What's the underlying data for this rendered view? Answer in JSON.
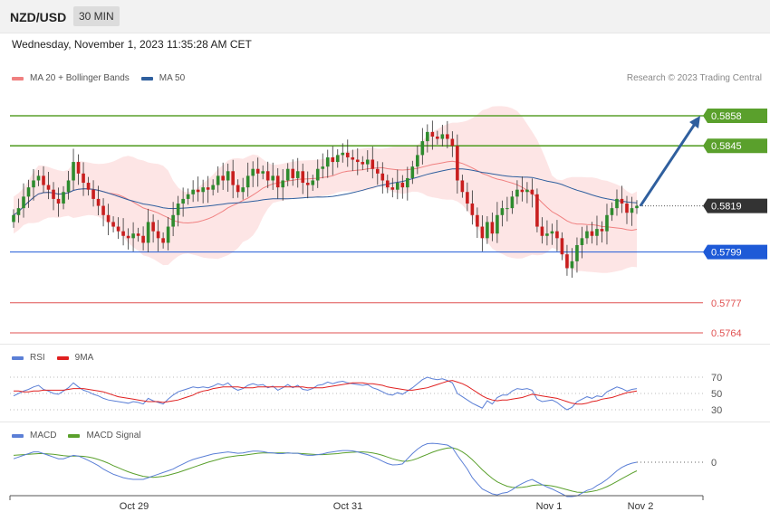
{
  "header": {
    "symbol": "NZD/USD",
    "timeframe": "30 MIN"
  },
  "datetime": "Wednesday, November 1, 2023 11:35:28 AM CET",
  "credit": "Research © 2023 Trading Central",
  "legends": {
    "price": [
      {
        "label": "MA 20 + Bollinger Bands",
        "color": "#f08080"
      },
      {
        "label": "MA 50",
        "color": "#2f5f9e"
      }
    ],
    "rsi": [
      {
        "label": "RSI",
        "color": "#5b7fd6"
      },
      {
        "label": "9MA",
        "color": "#e02020"
      }
    ],
    "macd": [
      {
        "label": "MACD",
        "color": "#5b7fd6"
      },
      {
        "label": "MACD Signal",
        "color": "#5aa02c"
      }
    ]
  },
  "colors": {
    "up": "#2e8b2e",
    "down": "#c81e1e",
    "bollinger_fill": "#fde0e0",
    "resistance": "#5aa02c",
    "pivot": "#1e5ad7",
    "support": "#e05050",
    "arrow": "#2f5f9e",
    "current": "#333333"
  },
  "chart_data": [
    {
      "type": "candlestick",
      "title": "NZD/USD 30 MIN",
      "ylim": [
        0.5748,
        0.5884
      ],
      "x_labels": [
        "Oct 29",
        "Oct 31",
        "Nov 1",
        "Nov 2"
      ],
      "levels": [
        {
          "value": 0.5858,
          "label": "0.5858",
          "kind": "resistance"
        },
        {
          "value": 0.5845,
          "label": "0.5845",
          "kind": "resistance"
        },
        {
          "value": 0.5819,
          "label": "0.5819",
          "kind": "current"
        },
        {
          "value": 0.5799,
          "label": "0.5799",
          "kind": "pivot"
        },
        {
          "value": 0.5777,
          "label": "0.5777",
          "kind": "support"
        },
        {
          "value": 0.5764,
          "label": "0.5764",
          "kind": "support"
        }
      ],
      "arrow": {
        "from_price": 0.5819,
        "to_price": 0.5858,
        "direction": "up"
      },
      "series": [
        {
          "name": "price",
          "close": [
            0.5815,
            0.5818,
            0.5823,
            0.5827,
            0.583,
            0.5832,
            0.5828,
            0.5826,
            0.5822,
            0.582,
            0.5825,
            0.583,
            0.5838,
            0.5833,
            0.5829,
            0.5826,
            0.5822,
            0.5819,
            0.5815,
            0.5812,
            0.581,
            0.5808,
            0.5806,
            0.5805,
            0.5807,
            0.5806,
            0.5803,
            0.5812,
            0.5808,
            0.5805,
            0.5803,
            0.581,
            0.5815,
            0.582,
            0.5822,
            0.5824,
            0.5826,
            0.5825,
            0.5827,
            0.5826,
            0.5828,
            0.5832,
            0.583,
            0.5834,
            0.5828,
            0.5825,
            0.5827,
            0.5832,
            0.5835,
            0.5833,
            0.5834,
            0.583,
            0.5832,
            0.5827,
            0.583,
            0.5835,
            0.5831,
            0.5834,
            0.5829,
            0.5828,
            0.583,
            0.5835,
            0.5836,
            0.584,
            0.5838,
            0.5841,
            0.5842,
            0.584,
            0.5839,
            0.5838,
            0.5837,
            0.5839,
            0.5835,
            0.5833,
            0.583,
            0.5827,
            0.5826,
            0.5829,
            0.5827,
            0.5831,
            0.5836,
            0.5841,
            0.5847,
            0.5851,
            0.5849,
            0.5848,
            0.585,
            0.5848,
            0.5845,
            0.583,
            0.5825,
            0.582,
            0.5815,
            0.581,
            0.5805,
            0.5812,
            0.5807,
            0.5815,
            0.5818,
            0.5818,
            0.5823,
            0.5826,
            0.5825,
            0.5826,
            0.5824,
            0.581,
            0.5806,
            0.5807,
            0.5808,
            0.5805,
            0.5798,
            0.5792,
            0.5795,
            0.5802,
            0.5805,
            0.5808,
            0.5806,
            0.5809,
            0.5808,
            0.5815,
            0.5818,
            0.5822,
            0.582,
            0.5816,
            0.5818,
            0.5819
          ]
        }
      ]
    },
    {
      "type": "line",
      "title": "RSI",
      "yticks": [
        70,
        50,
        30
      ],
      "ylim": [
        25,
        78
      ],
      "series": [
        {
          "name": "RSI",
          "values": [
            47,
            50,
            53,
            55,
            58,
            60,
            55,
            53,
            50,
            49,
            53,
            57,
            63,
            58,
            54,
            52,
            49,
            47,
            44,
            42,
            41,
            40,
            39,
            38,
            40,
            39,
            37,
            44,
            41,
            39,
            37,
            43,
            48,
            52,
            54,
            56,
            58,
            57,
            58,
            57,
            59,
            62,
            60,
            63,
            57,
            54,
            56,
            60,
            62,
            60,
            61,
            57,
            59,
            54,
            57,
            61,
            57,
            60,
            55,
            54,
            56,
            60,
            61,
            64,
            62,
            64,
            65,
            63,
            62,
            61,
            60,
            61,
            57,
            55,
            52,
            49,
            48,
            51,
            49,
            53,
            57,
            62,
            67,
            70,
            68,
            67,
            68,
            66,
            63,
            50,
            46,
            42,
            38,
            35,
            32,
            41,
            37,
            45,
            48,
            48,
            53,
            56,
            55,
            56,
            54,
            43,
            40,
            41,
            42,
            39,
            34,
            30,
            33,
            40,
            43,
            46,
            44,
            47,
            46,
            52,
            55,
            58,
            56,
            53,
            55,
            56
          ]
        },
        {
          "name": "9MA",
          "values": [
            53,
            53,
            52,
            52,
            53,
            53,
            54,
            54,
            54,
            54,
            54,
            55,
            56,
            56,
            56,
            55,
            54,
            53,
            52,
            50,
            48,
            46,
            45,
            44,
            43,
            42,
            41,
            40,
            40,
            40,
            39,
            40,
            41,
            42,
            44,
            46,
            48,
            51,
            53,
            54,
            56,
            57,
            58,
            58,
            58,
            58,
            57,
            57,
            57,
            58,
            58,
            58,
            58,
            58,
            58,
            58,
            58,
            58,
            58,
            57,
            57,
            57,
            57,
            58,
            59,
            60,
            61,
            62,
            63,
            63,
            63,
            62,
            62,
            61,
            60,
            58,
            57,
            56,
            55,
            54,
            54,
            55,
            56,
            57,
            59,
            61,
            63,
            65,
            66,
            64,
            62,
            59,
            55,
            51,
            47,
            44,
            42,
            41,
            42,
            42,
            43,
            44,
            45,
            47,
            49,
            48,
            47,
            46,
            45,
            44,
            42,
            40,
            38,
            37,
            37,
            38,
            40,
            41,
            43,
            44,
            45,
            47,
            49,
            51,
            52,
            53
          ]
        }
      ]
    },
    {
      "type": "line",
      "title": "MACD",
      "yticks": [
        0
      ],
      "ylim": [
        -0.0012,
        0.0008
      ],
      "series": [
        {
          "name": "MACD",
          "values": [
            0.0001,
            0.00015,
            0.0002,
            0.00025,
            0.0003,
            0.0003,
            0.00025,
            0.0002,
            0.00015,
            0.0001,
            0.0001,
            0.00015,
            0.0002,
            0.00018,
            0.00012,
            5e-05,
            -2e-05,
            -0.0001,
            -0.0002,
            -0.00028,
            -0.00035,
            -0.0004,
            -0.00045,
            -0.00048,
            -0.0005,
            -0.0005,
            -0.0005,
            -0.00045,
            -0.0004,
            -0.00035,
            -0.0003,
            -0.00025,
            -0.0002,
            -0.00012,
            -5e-05,
            2e-05,
            8e-05,
            0.00012,
            0.00016,
            0.0002,
            0.00024,
            0.00026,
            0.00028,
            0.0003,
            0.00028,
            0.00026,
            0.00027,
            0.0003,
            0.00032,
            0.00032,
            0.00031,
            0.00028,
            0.00027,
            0.00025,
            0.00025,
            0.00027,
            0.00026,
            0.00026,
            0.00022,
            0.0002,
            0.0002,
            0.00022,
            0.00024,
            0.00028,
            0.0003,
            0.00032,
            0.00034,
            0.00034,
            0.00033,
            0.0003,
            0.00026,
            0.00022,
            0.00016,
            0.0001,
            3e-05,
            -4e-05,
            -8e-05,
            -7e-05,
            -5e-05,
            0.0001,
            0.00025,
            0.00038,
            0.00048,
            0.00054,
            0.00055,
            0.00054,
            0.00052,
            0.0005,
            0.00042,
            0.0002,
            0.0,
            -0.0002,
            -0.00045,
            -0.00062,
            -0.00078,
            -0.00085,
            -0.00092,
            -0.00095,
            -0.0009,
            -0.00088,
            -0.0008,
            -0.0007,
            -0.00062,
            -0.00055,
            -0.0005,
            -0.00058,
            -0.00065,
            -0.00072,
            -0.00078,
            -0.00085,
            -0.00092,
            -0.001,
            -0.001,
            -0.00098,
            -0.0009,
            -0.00082,
            -0.00078,
            -0.00068,
            -0.0006,
            -0.0005,
            -0.00038,
            -0.00025,
            -0.00015,
            -8e-05,
            -3e-05,
            0.0
          ]
        },
        {
          "name": "MACD Signal",
          "values": [
            0.0002,
            0.00021,
            0.00022,
            0.00023,
            0.00024,
            0.00025,
            0.00025,
            0.00024,
            0.00023,
            0.00021,
            0.00019,
            0.00018,
            0.00018,
            0.00018,
            0.00017,
            0.00015,
            0.00012,
            8e-05,
            3e-05,
            -3e-05,
            -0.0001,
            -0.00016,
            -0.00022,
            -0.00028,
            -0.00033,
            -0.00037,
            -0.00041,
            -0.00043,
            -0.00044,
            -0.00043,
            -0.00041,
            -0.00038,
            -0.00034,
            -0.0003,
            -0.00025,
            -0.0002,
            -0.00015,
            -0.0001,
            -5e-05,
            0.0,
            4e-05,
            8e-05,
            0.00012,
            0.00015,
            0.00017,
            0.00019,
            0.0002,
            0.00022,
            0.00024,
            0.00026,
            0.00027,
            0.00027,
            0.00027,
            0.00027,
            0.00027,
            0.00027,
            0.00026,
            0.00026,
            0.00025,
            0.00024,
            0.00023,
            0.00022,
            0.00022,
            0.00023,
            0.00024,
            0.00025,
            0.00027,
            0.00028,
            0.00029,
            0.0003,
            0.0003,
            0.00029,
            0.00027,
            0.00024,
            0.0002,
            0.00015,
            0.0001,
            6e-05,
            3e-05,
            3e-05,
            6e-05,
            0.00011,
            0.00017,
            0.00023,
            0.00029,
            0.00034,
            0.00038,
            0.00041,
            0.00042,
            0.00038,
            0.0003,
            0.0002,
            7e-05,
            -7e-05,
            -0.00022,
            -0.00035,
            -0.00047,
            -0.00057,
            -0.00064,
            -0.0007,
            -0.00073,
            -0.00074,
            -0.00073,
            -0.00071,
            -0.00068,
            -0.00066,
            -0.00066,
            -0.00067,
            -0.00069,
            -0.00072,
            -0.00076,
            -0.0008,
            -0.00084,
            -0.00087,
            -0.00088,
            -0.00087,
            -0.00085,
            -0.00082,
            -0.00077,
            -0.00071,
            -0.00064,
            -0.00056,
            -0.00048,
            -0.0004,
            -0.00032,
            -0.00025
          ]
        }
      ]
    }
  ]
}
